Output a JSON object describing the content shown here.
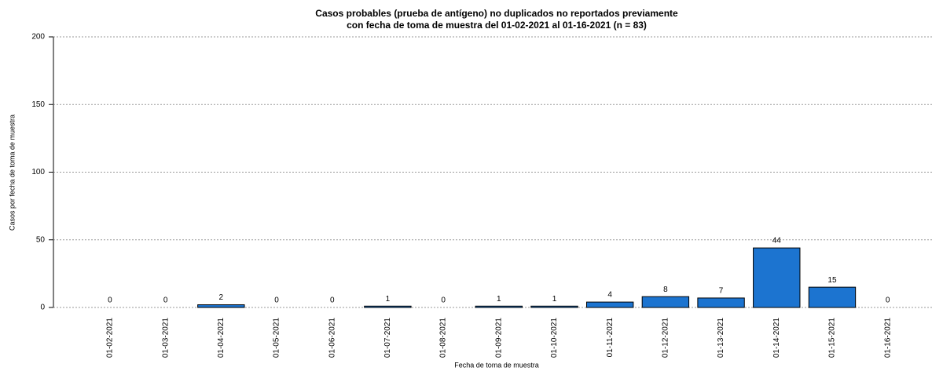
{
  "chart_data": {
    "type": "bar",
    "title": [
      "Casos probables (prueba de antígeno) no duplicados no reportados previamente",
      "con fecha de toma de muestra del 01-02-2021 al 01-16-2021 (n = 83)"
    ],
    "x_label": "Fecha de toma de muestra",
    "y_label": "Casos por fecha de toma de muestra",
    "categories": [
      "01-02-2021",
      "01-03-2021",
      "01-04-2021",
      "01-05-2021",
      "01-06-2021",
      "01-07-2021",
      "01-08-2021",
      "01-09-2021",
      "01-10-2021",
      "01-11-2021",
      "01-12-2021",
      "01-13-2021",
      "01-14-2021",
      "01-15-2021",
      "01-16-2021"
    ],
    "values": [
      0,
      0,
      2,
      0,
      0,
      1,
      0,
      1,
      1,
      4,
      8,
      7,
      44,
      15,
      0
    ],
    "color": "#1c74d0",
    "ylim": [
      0,
      200
    ],
    "yticks": [
      0,
      50,
      100,
      150,
      200
    ],
    "grid": true
  }
}
